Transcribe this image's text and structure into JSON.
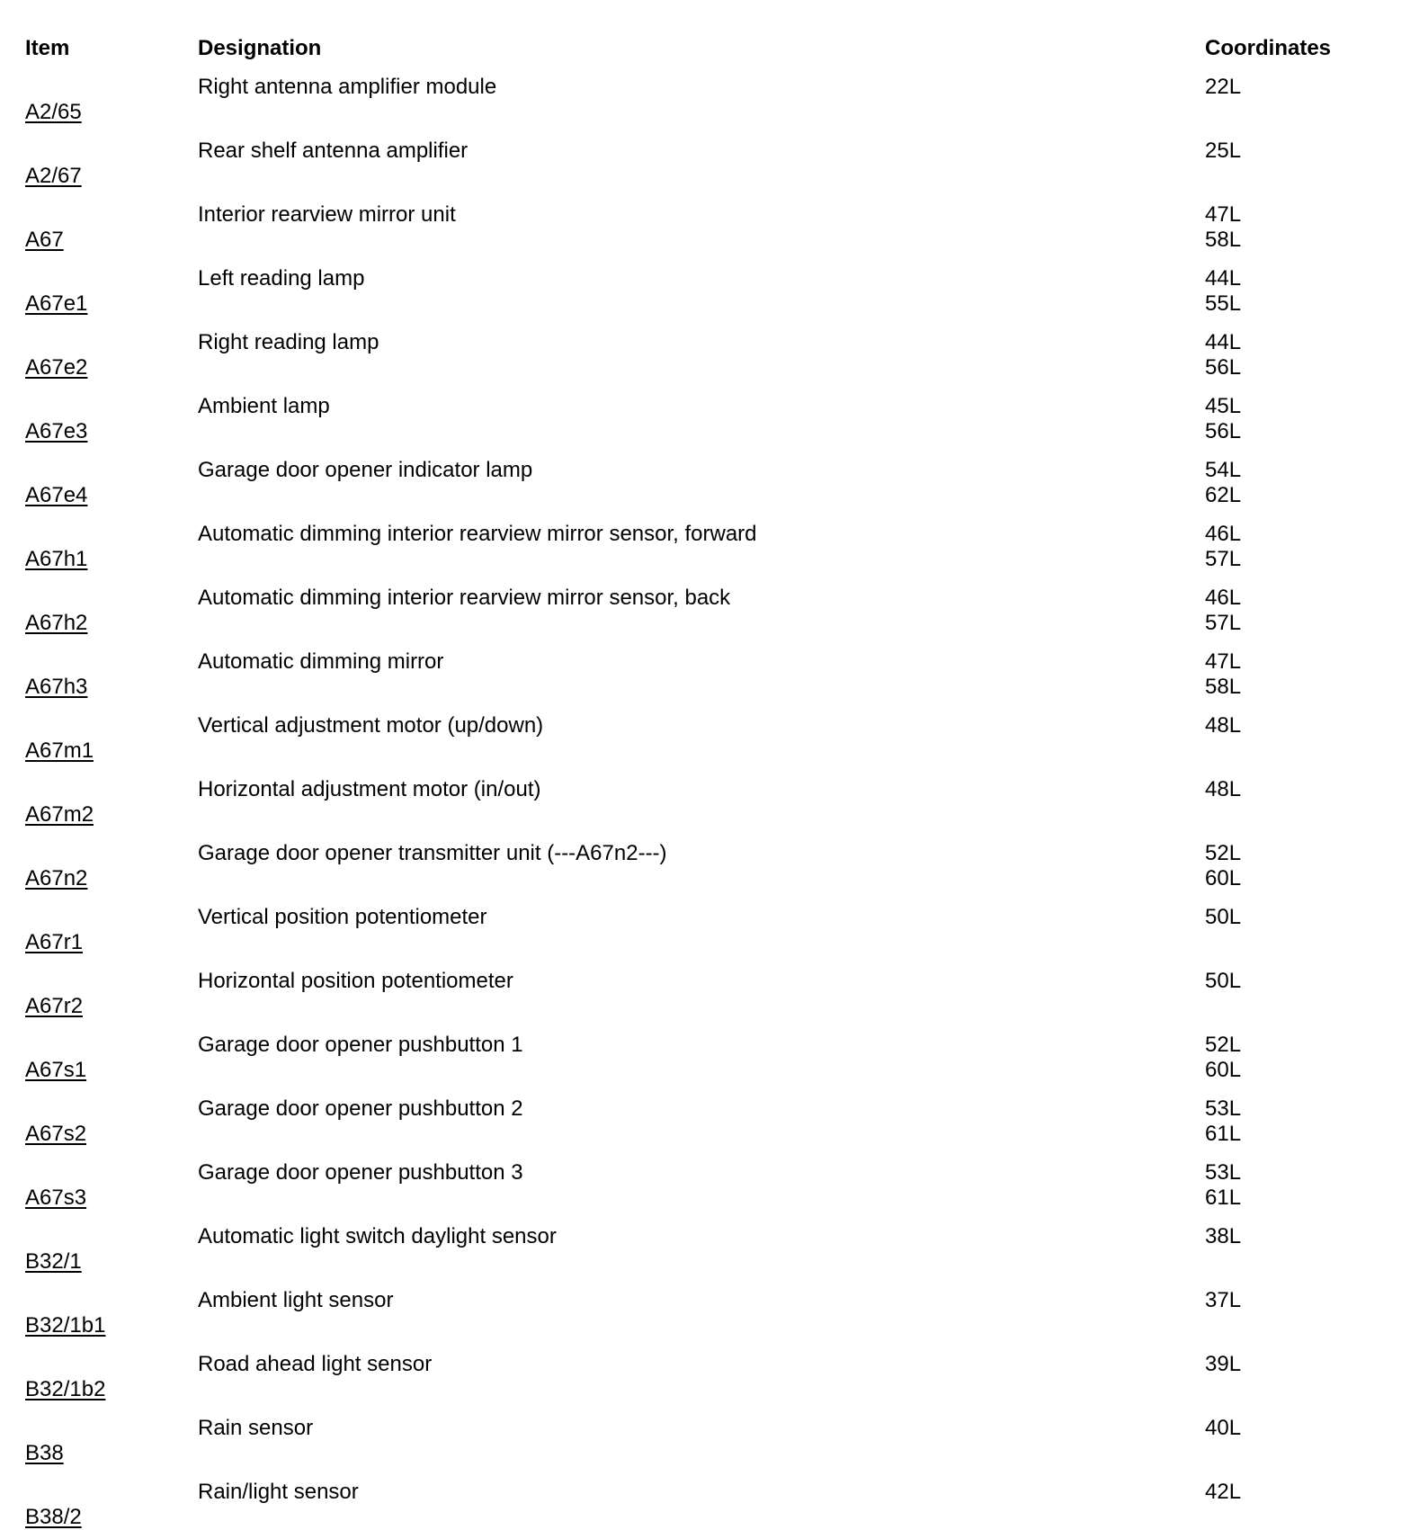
{
  "page": {
    "background_color": "#ffffff",
    "text_color": "#000000"
  },
  "table": {
    "headers": {
      "item": "Item",
      "designation": "Designation",
      "coordinates": "Coordinates"
    },
    "rows": [
      {
        "item": "A2/65",
        "designation": "Right antenna amplifier module",
        "coordinates": "22L"
      },
      {
        "item": "A2/67",
        "designation": "Rear shelf antenna amplifier",
        "coordinates": "25L"
      },
      {
        "item": "A67",
        "designation": "Interior rearview mirror unit",
        "coordinates": "47L\n58L"
      },
      {
        "item": "A67e1",
        "designation": "Left reading lamp",
        "coordinates": "44L\n55L"
      },
      {
        "item": "A67e2",
        "designation": "Right reading lamp",
        "coordinates": "44L\n56L"
      },
      {
        "item": "A67e3",
        "designation": "Ambient lamp",
        "coordinates": "45L\n56L"
      },
      {
        "item": "A67e4",
        "designation": "Garage door opener indicator lamp",
        "coordinates": "54L\n62L"
      },
      {
        "item": "A67h1",
        "designation": "Automatic dimming interior rearview mirror sensor, forward",
        "coordinates": "46L\n57L"
      },
      {
        "item": "A67h2",
        "designation": "Automatic dimming interior rearview mirror sensor, back",
        "coordinates": "46L\n57L"
      },
      {
        "item": "A67h3",
        "designation": "Automatic dimming mirror",
        "coordinates": "47L\n58L"
      },
      {
        "item": "A67m1",
        "designation": "Vertical adjustment motor (up/down)",
        "coordinates": "48L"
      },
      {
        "item": "A67m2",
        "designation": "Horizontal adjustment motor (in/out)",
        "coordinates": "48L"
      },
      {
        "item": "A67n2",
        "designation": "Garage door opener transmitter unit (---A67n2---)",
        "coordinates": "52L\n60L"
      },
      {
        "item": "A67r1",
        "designation": "Vertical position potentiometer",
        "coordinates": "50L"
      },
      {
        "item": "A67r2",
        "designation": "Horizontal position potentiometer",
        "coordinates": "50L"
      },
      {
        "item": "A67s1",
        "designation": "Garage door opener pushbutton 1",
        "coordinates": "52L\n60L"
      },
      {
        "item": "A67s2",
        "designation": "Garage door opener pushbutton 2",
        "coordinates": "53L\n61L"
      },
      {
        "item": "A67s3",
        "designation": "Garage door opener pushbutton 3",
        "coordinates": "53L\n61L"
      },
      {
        "item": "B32/1",
        "designation": "Automatic light switch daylight sensor",
        "coordinates": "38L"
      },
      {
        "item": "B32/1b1",
        "designation": "Ambient light sensor",
        "coordinates": "37L"
      },
      {
        "item": "B32/1b2",
        "designation": "Road ahead light sensor",
        "coordinates": "39L"
      },
      {
        "item": "B38",
        "designation": "Rain sensor",
        "coordinates": "40L"
      },
      {
        "item": "B38/2",
        "designation": "Rain/light sensor",
        "coordinates": "42L"
      }
    ]
  }
}
